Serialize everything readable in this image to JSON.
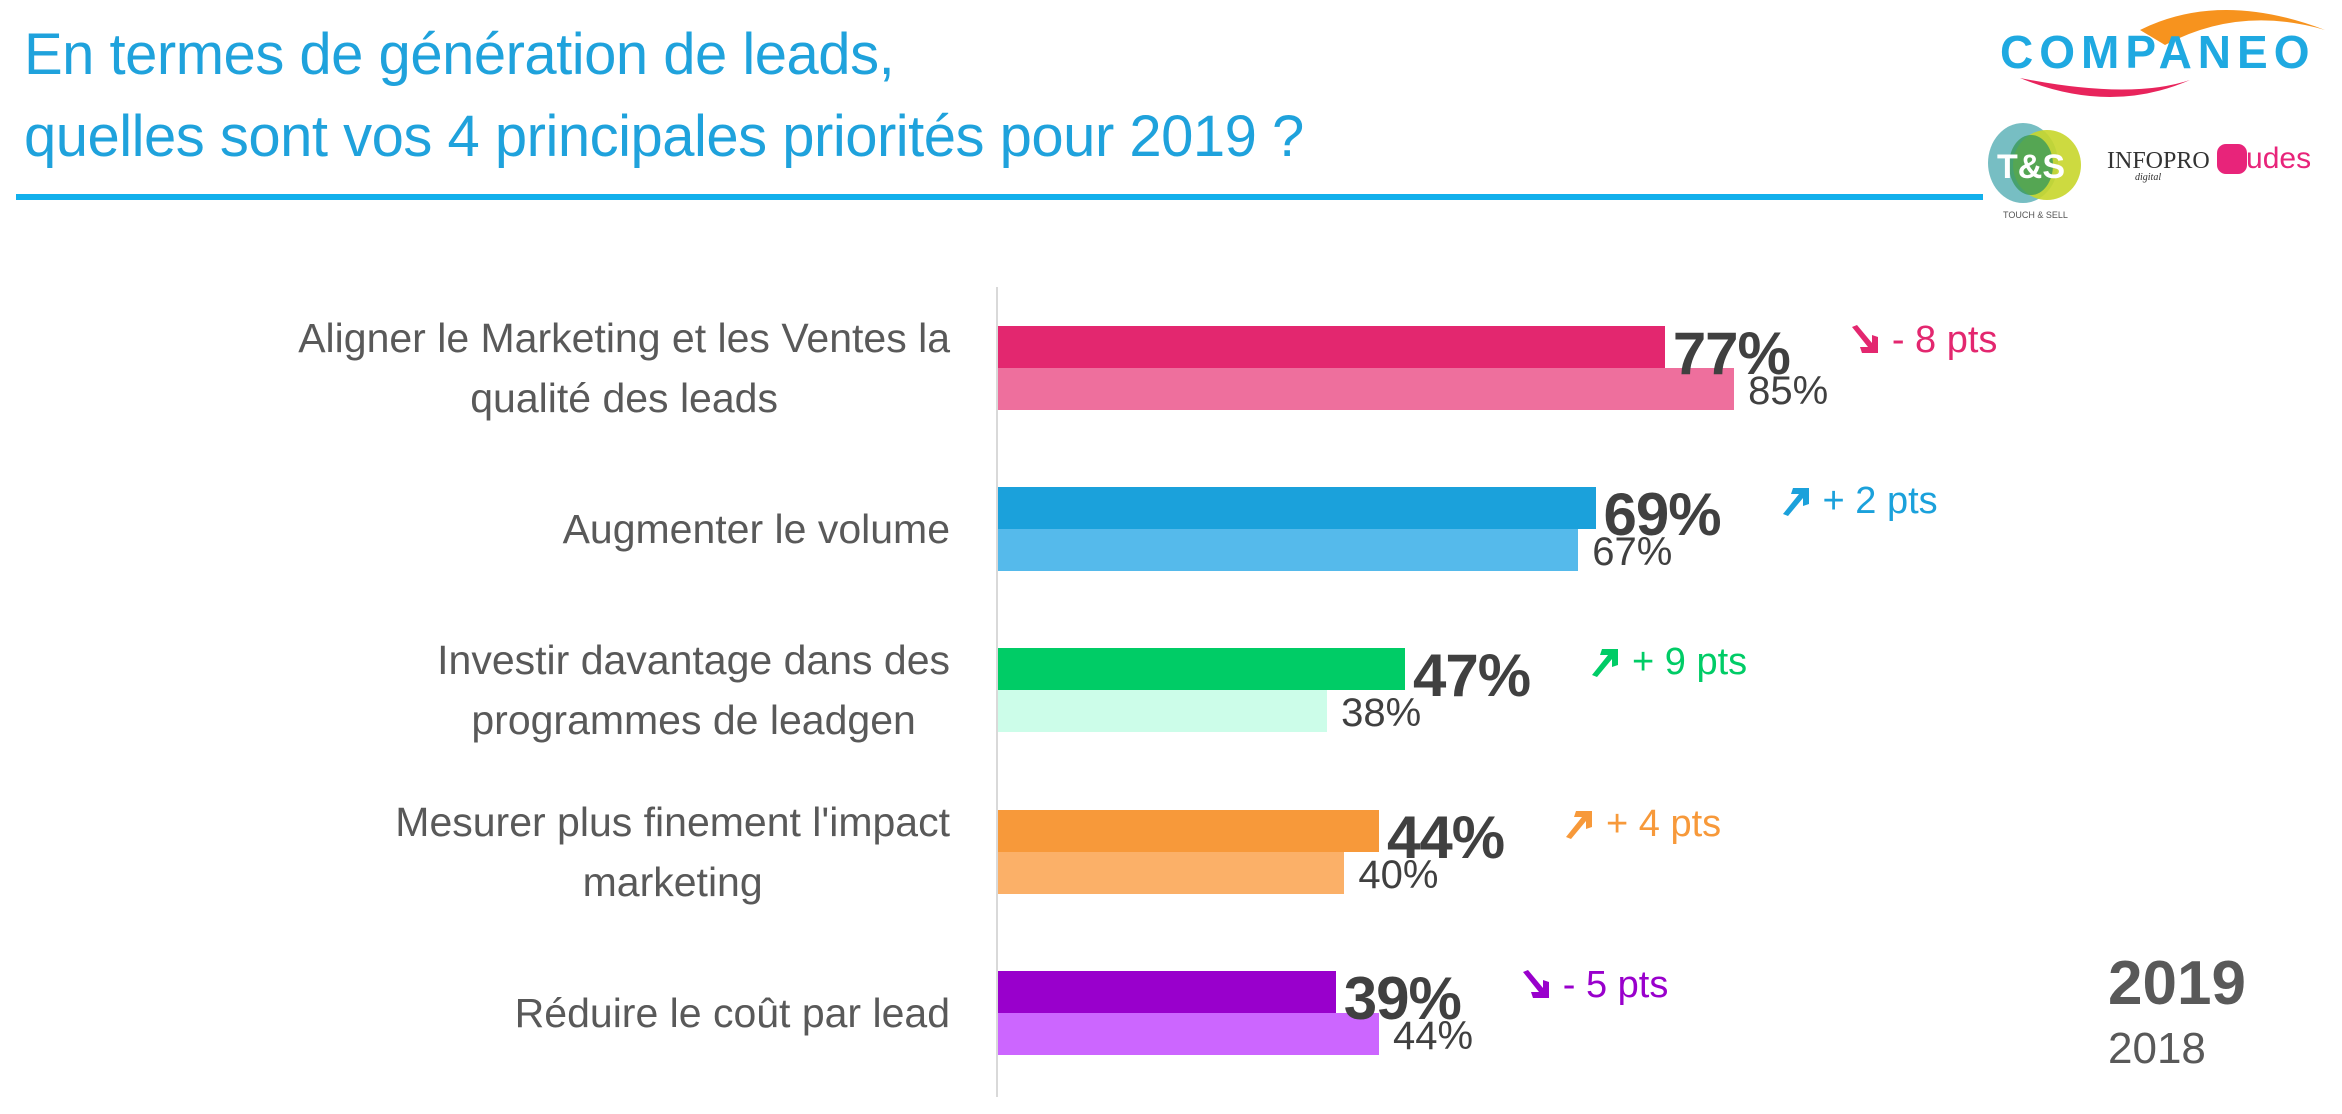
{
  "header": {
    "title_line1": "En termes de génération de leads,",
    "title_line2": "quelles sont vos 4 principales priorités pour 2019 ?",
    "title_color": "#1fa2dc"
  },
  "logos": {
    "companeo": "COMPANEO",
    "ts": "T&S",
    "ts_sub": "TOUCH & SELL",
    "infopro": "INFOPRO",
    "infopro_sub": "digital",
    "etudes": "études"
  },
  "chart_data": {
    "type": "bar",
    "orientation": "horizontal",
    "title": "En termes de génération de leads, quelles sont vos 4 principales priorités pour 2019 ?",
    "xlabel": "",
    "ylabel": "",
    "xlim": [
      0,
      100
    ],
    "grid": false,
    "legend_position": "bottom-right",
    "categories": [
      [
        "Aligner le Marketing et les Ventes la",
        "qualité des leads"
      ],
      [
        "Augmenter le volume"
      ],
      [
        "Investir davantage dans des",
        "programmes de leadgen"
      ],
      [
        "Mesurer plus finement l'impact",
        "marketing"
      ],
      [
        "Réduire le coût par lead"
      ]
    ],
    "series": [
      {
        "name": "2019",
        "values": [
          77,
          69,
          47,
          44,
          39
        ],
        "labels": [
          "77%",
          "69%",
          "47%",
          "44%",
          "39%"
        ]
      },
      {
        "name": "2018",
        "values": [
          85,
          67,
          38,
          40,
          44
        ],
        "labels": [
          "85%",
          "67%",
          "38%",
          "40%",
          "44%"
        ]
      }
    ],
    "deltas": [
      {
        "text": "- 8 pts",
        "direction": "down",
        "color": "#e3276f"
      },
      {
        "text": "+ 2 pts",
        "direction": "up",
        "color": "#1ba1db"
      },
      {
        "text": "+ 9 pts",
        "direction": "up",
        "color": "#00cc66"
      },
      {
        "text": "+ 4 pts",
        "direction": "up",
        "color": "#f7993a"
      },
      {
        "text": "- 5 pts",
        "direction": "down",
        "color": "#9900cc"
      }
    ],
    "colors_2019": [
      "#e3276f",
      "#1ba1db",
      "#00cc66",
      "#f7993a",
      "#9900cc"
    ],
    "colors_2018": [
      "#ee6f9d",
      "#55baeb",
      "#ccfde9",
      "#fbb068",
      "#cc66ff"
    ]
  },
  "legend": {
    "year_current": "2019",
    "year_previous": "2018"
  }
}
